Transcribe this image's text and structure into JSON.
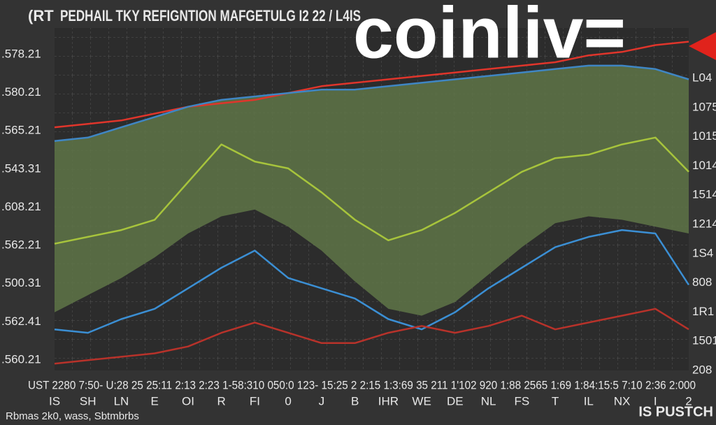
{
  "chart_data": {
    "type": "line",
    "title": "PEDHAIL TKY REFIGNTION MAFGETULG I2 22 / L4IS",
    "logo": "coinliv=",
    "corner_mark": "(RT",
    "y_axis_labels": [
      ".578.21",
      ".580.21",
      ".565.21",
      ".543.31",
      ".608.21",
      ".562.21",
      ".500.31",
      ".562.41",
      ".560.21"
    ],
    "right_axis_labels": [
      "L04",
      "1075",
      "1015",
      "1014",
      "1514",
      "1214",
      "1S4",
      "808",
      "1R1",
      "1501",
      "208"
    ],
    "x_axis_text": "UST 2280 7:50- U:28 25 25:11 2:13 2:23 1-58:310 050:0 123- 15:25 2 2:15 1:3:69 35 211 1'102 920 1:88 2565 1:69 1:84:15:5 7:10 2:36 2:000",
    "categories": [
      "IS",
      "SH",
      "LN",
      "E",
      "OI",
      "R",
      "FI",
      "0",
      "J",
      "B",
      "IHR",
      "WE",
      "DE",
      "NL",
      "FS",
      "T",
      "IL",
      "NX",
      "I",
      "2"
    ],
    "footer_left": "Rbmas 2k0, wass, Sbtmbrbs",
    "footer_right": "IS PUSTCH",
    "ylim": [
      0,
      100
    ],
    "series": [
      {
        "color": "#e0352b",
        "values": [
          71,
          72,
          73,
          75,
          77,
          78,
          79,
          81,
          83,
          84,
          85,
          86,
          87,
          88,
          89,
          90,
          92,
          93,
          95,
          96
        ]
      },
      {
        "color": "#3f86c4",
        "values": [
          67,
          68,
          71,
          74,
          77,
          79,
          80,
          81,
          82,
          82,
          83,
          84,
          85,
          86,
          87,
          88,
          89,
          89,
          88,
          85
        ]
      },
      {
        "color": "#a7c43c",
        "values": [
          37,
          39,
          41,
          44,
          55,
          66,
          61,
          59,
          52,
          44,
          38,
          41,
          46,
          52,
          58,
          62,
          63,
          66,
          68,
          58
        ]
      },
      {
        "color": "#3b8fd4",
        "values": [
          12,
          11,
          15,
          18,
          24,
          30,
          35,
          27,
          24,
          21,
          15,
          12,
          17,
          24,
          30,
          36,
          39,
          41,
          40,
          25
        ]
      },
      {
        "color": "#b8322a",
        "values": [
          2,
          3,
          4,
          5,
          7,
          11,
          14,
          11,
          8,
          8,
          11,
          13,
          11,
          13,
          16,
          12,
          14,
          16,
          18,
          12
        ]
      }
    ],
    "band": {
      "color": "#5f7548",
      "lower": [
        17,
        22,
        27,
        33,
        40,
        45,
        47,
        42,
        35,
        26,
        18,
        16,
        20,
        28,
        36,
        43,
        45,
        44,
        42,
        40
      ]
    }
  }
}
